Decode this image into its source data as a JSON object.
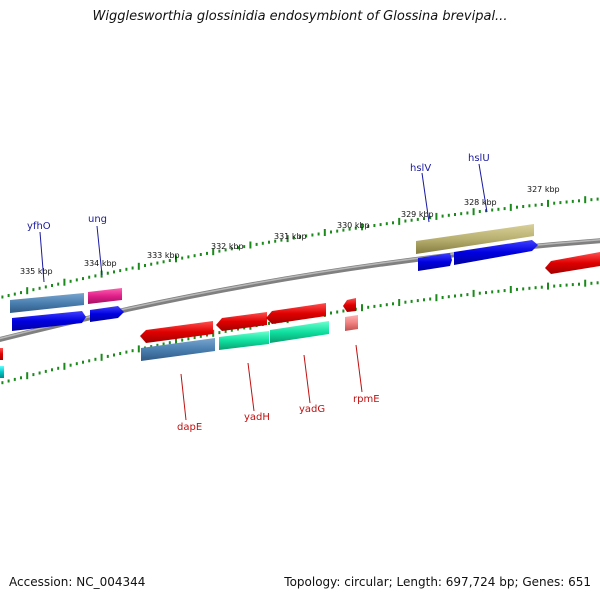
{
  "title": "Wigglesworthia glossinidia endosymbiont of Glossina brevipal...",
  "footer": {
    "accession": "Accession: NC_004344",
    "info": "Topology: circular; Length: 697,724 bp; Genes: 651"
  },
  "scale_labels": [
    "335 kbp",
    "334 kbp",
    "333 kbp",
    "332 kbp",
    "331 kbp",
    "330 kbp",
    "329 kbp",
    "328 kbp",
    "327 kbp"
  ],
  "genes_top": [
    "yfhO",
    "ung",
    "hslV",
    "hslU"
  ],
  "genes_bottom": [
    "dapE",
    "yadH",
    "yadG",
    "rpmE"
  ],
  "colors": {
    "backbone": "#808080",
    "tick_green": "#1a8a1a",
    "cds_red": "#e00000",
    "cds_blue": "#0000e0",
    "steel_blue": "#4a7fb0",
    "magenta": "#e0208a",
    "cyan_green": "#10e0a0",
    "olive": "#b8b070",
    "pink": "#f08080",
    "cyan": "#00c8c8"
  }
}
